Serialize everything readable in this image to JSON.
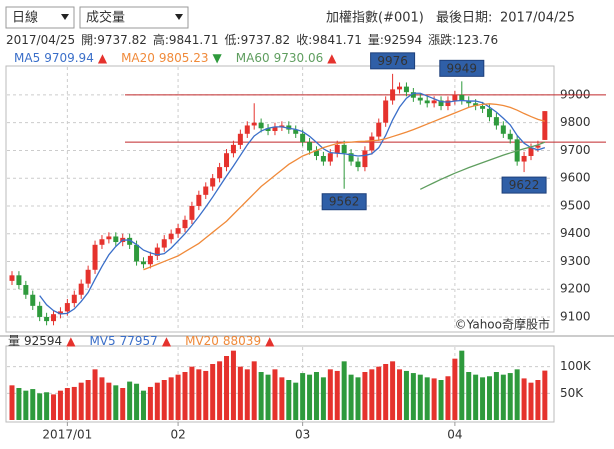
{
  "header": {
    "period": "日線",
    "indicator": "成交量",
    "title": "加權指數(#001)",
    "last_date_label": "最後日期:",
    "last_date": "2017/04/25"
  },
  "quote": {
    "date": "2017/04/25",
    "items": [
      {
        "label": "開:",
        "value": 9737.82
      },
      {
        "label": "高:",
        "value": 9841.71
      },
      {
        "label": "低:",
        "value": 9737.82
      },
      {
        "label": "收:",
        "value": 9841.71
      },
      {
        "label": "量:",
        "value": 92594
      },
      {
        "label": "漲跌:",
        "value": 123.76
      }
    ]
  },
  "chart_data": [
    {
      "type": "candlestick",
      "up_color": "#e5322d",
      "down_color": "#2e9a3c",
      "ylim": [
        9053,
        9943
      ],
      "yticks": [
        9100,
        9200,
        9300,
        9400,
        9500,
        9600,
        9700,
        9800,
        9900
      ],
      "grid": true,
      "watermark": "©Yahoo奇摩股市",
      "hlines": [
        9900,
        9730
      ],
      "hline_color": "#c0282a",
      "annotations": [
        9976,
        9949,
        9562,
        9622
      ],
      "open": [
        9230,
        9250,
        9215,
        9180,
        9140,
        9100,
        9085,
        9110,
        9120,
        9150,
        9180,
        9220,
        9270,
        9360,
        9380,
        9390,
        9370,
        9385,
        9360,
        9300,
        9290,
        9320,
        9350,
        9380,
        9400,
        9420,
        9450,
        9500,
        9540,
        9570,
        9600,
        9640,
        9690,
        9720,
        9760,
        9790,
        9800,
        9780,
        9770,
        9785,
        9790,
        9775,
        9760,
        9730,
        9700,
        9680,
        9660,
        9690,
        9720,
        9690,
        9660,
        9640,
        9700,
        9750,
        9800,
        9880,
        9920,
        9930,
        9910,
        9890,
        9880,
        9870,
        9880,
        9860,
        9880,
        9900,
        9880,
        9870,
        9860,
        9850,
        9820,
        9790,
        9760,
        9740,
        9660,
        9680,
        9710,
        9737.82
      ],
      "high": [
        9265,
        9265,
        9230,
        9195,
        9155,
        9115,
        9125,
        9135,
        9165,
        9195,
        9235,
        9285,
        9375,
        9395,
        9405,
        9405,
        9400,
        9400,
        9375,
        9315,
        9335,
        9365,
        9395,
        9415,
        9435,
        9465,
        9515,
        9555,
        9585,
        9615,
        9655,
        9705,
        9735,
        9775,
        9805,
        9870,
        9815,
        9795,
        9800,
        9805,
        9805,
        9790,
        9775,
        9745,
        9715,
        9695,
        9705,
        9735,
        9735,
        9705,
        9675,
        9715,
        9765,
        9815,
        9895,
        9976,
        9945,
        9945,
        9925,
        9905,
        9895,
        9895,
        9895,
        9895,
        9915,
        9949,
        9895,
        9885,
        9875,
        9865,
        9835,
        9805,
        9775,
        9755,
        9695,
        9725,
        9735,
        9841.71
      ],
      "low": [
        9215,
        9200,
        9165,
        9125,
        9085,
        9070,
        9070,
        9095,
        9105,
        9135,
        9165,
        9205,
        9255,
        9345,
        9365,
        9355,
        9355,
        9345,
        9285,
        9275,
        9275,
        9305,
        9335,
        9365,
        9385,
        9405,
        9435,
        9485,
        9525,
        9555,
        9585,
        9625,
        9675,
        9705,
        9745,
        9775,
        9765,
        9755,
        9755,
        9770,
        9760,
        9745,
        9715,
        9685,
        9665,
        9645,
        9645,
        9675,
        9562,
        9645,
        9625,
        9625,
        9685,
        9735,
        9785,
        9865,
        9905,
        9895,
        9875,
        9865,
        9855,
        9855,
        9845,
        9845,
        9865,
        9865,
        9855,
        9845,
        9835,
        9805,
        9775,
        9745,
        9725,
        9645,
        9622,
        9665,
        9695,
        9737.82
      ],
      "close": [
        9250,
        9215,
        9180,
        9140,
        9100,
        9085,
        9110,
        9120,
        9150,
        9180,
        9220,
        9270,
        9360,
        9380,
        9390,
        9370,
        9385,
        9360,
        9300,
        9290,
        9320,
        9350,
        9380,
        9400,
        9420,
        9450,
        9500,
        9540,
        9570,
        9600,
        9640,
        9690,
        9720,
        9760,
        9790,
        9800,
        9780,
        9770,
        9785,
        9790,
        9775,
        9760,
        9730,
        9700,
        9680,
        9660,
        9690,
        9720,
        9690,
        9660,
        9640,
        9700,
        9750,
        9800,
        9880,
        9920,
        9930,
        9910,
        9890,
        9880,
        9870,
        9880,
        9860,
        9880,
        9900,
        9880,
        9870,
        9860,
        9850,
        9820,
        9790,
        9760,
        9740,
        9660,
        9680,
        9710,
        9717.95,
        9841.71
      ],
      "ma": [
        {
          "name": "MA5",
          "value": 9709.94,
          "trend": "▲",
          "trend_color": "#e5322d",
          "color": "#3b6fc9",
          "values": [
            null,
            null,
            null,
            null,
            9177,
            9144,
            9123,
            9111,
            9113,
            9129,
            9156,
            9188,
            9236,
            9282,
            9324,
            9354,
            9377,
            9377,
            9361,
            9341,
            9331,
            9324,
            9328,
            9348,
            9374,
            9400,
            9430,
            9462,
            9496,
            9532,
            9570,
            9608,
            9644,
            9682,
            9720,
            9752,
            9770,
            9780,
            9785,
            9785,
            9780,
            9776,
            9768,
            9751,
            9729,
            9706,
            9692,
            9690,
            9688,
            9684,
            9680,
            9682,
            9688,
            9710,
            9754,
            9810,
            9856,
            9888,
            9906,
            9906,
            9896,
            9886,
            9876,
            9874,
            9878,
            9880,
            9878,
            9878,
            9872,
            9856,
            9838,
            9816,
            9792,
            9754,
            9726,
            9710,
            9702,
            9709.94
          ]
        },
        {
          "name": "MA20",
          "value": 9805.23,
          "trend": "▼",
          "trend_color": "#2e9a3c",
          "color": "#f08a3a",
          "values": [
            null,
            null,
            null,
            null,
            null,
            null,
            null,
            null,
            null,
            null,
            null,
            null,
            null,
            null,
            null,
            null,
            null,
            null,
            null,
            9270,
            9280,
            9290,
            9300,
            9310,
            9320,
            9335,
            9350,
            9365,
            9385,
            9405,
            9425,
            9445,
            9470,
            9495,
            9520,
            9545,
            9570,
            9590,
            9610,
            9630,
            9650,
            9665,
            9680,
            9690,
            9700,
            9710,
            9718,
            9725,
            9728,
            9730,
            9732,
            9733,
            9735,
            9737,
            9742,
            9750,
            9758,
            9766,
            9775,
            9785,
            9795,
            9805,
            9815,
            9825,
            9835,
            9845,
            9855,
            9862,
            9866,
            9868,
            9866,
            9862,
            9855,
            9845,
            9833,
            9822,
            9812,
            9805.23
          ]
        },
        {
          "name": "MA60",
          "value": 9730.06,
          "trend": "▲",
          "trend_color": "#e5322d",
          "color": "#5f9e5f",
          "values": [
            null,
            null,
            null,
            null,
            null,
            null,
            null,
            null,
            null,
            null,
            null,
            null,
            null,
            null,
            null,
            null,
            null,
            null,
            null,
            null,
            null,
            null,
            null,
            null,
            null,
            null,
            null,
            null,
            null,
            null,
            null,
            null,
            null,
            null,
            null,
            null,
            null,
            null,
            null,
            null,
            null,
            null,
            null,
            null,
            null,
            null,
            null,
            null,
            null,
            null,
            null,
            null,
            null,
            null,
            null,
            null,
            null,
            null,
            null,
            9560,
            9572,
            9584,
            9596,
            9607,
            9618,
            9628,
            9638,
            9647,
            9656,
            9665,
            9674,
            9683,
            9691,
            9699,
            9706,
            9713,
            9720,
            9730.06
          ]
        }
      ]
    },
    {
      "type": "bar",
      "categories": [
        null,
        null,
        null,
        null,
        null,
        null,
        null,
        null,
        "2017/01",
        null,
        null,
        null,
        null,
        null,
        null,
        null,
        null,
        null,
        null,
        null,
        null,
        null,
        null,
        null,
        "02",
        null,
        null,
        null,
        null,
        null,
        null,
        null,
        null,
        null,
        null,
        null,
        null,
        null,
        null,
        null,
        null,
        null,
        "03",
        null,
        null,
        null,
        null,
        null,
        null,
        null,
        null,
        null,
        null,
        null,
        null,
        null,
        null,
        null,
        null,
        null,
        null,
        null,
        null,
        null,
        "04",
        null,
        null,
        null,
        null,
        null,
        null,
        null,
        null,
        null,
        null,
        null,
        null,
        null
      ],
      "values": [
        65000,
        60000,
        55000,
        58000,
        50000,
        52000,
        48000,
        55000,
        60000,
        62000,
        70000,
        75000,
        95000,
        80000,
        70000,
        65000,
        60000,
        72000,
        68000,
        55000,
        62000,
        70000,
        75000,
        80000,
        85000,
        90000,
        100000,
        95000,
        92000,
        105000,
        110000,
        120000,
        130000,
        100000,
        95000,
        110000,
        90000,
        85000,
        95000,
        80000,
        75000,
        70000,
        88000,
        85000,
        90000,
        80000,
        95000,
        92000,
        110000,
        85000,
        80000,
        90000,
        95000,
        100000,
        105000,
        110000,
        95000,
        92000,
        88000,
        85000,
        80000,
        78000,
        75000,
        82000,
        115000,
        130000,
        90000,
        85000,
        80000,
        82000,
        90000,
        85000,
        88000,
        95000,
        78000,
        70000,
        75000,
        92594
      ],
      "ylim": [
        0,
        135000
      ],
      "yticks": [
        {
          "value": 50000,
          "label": "50K"
        },
        {
          "value": 100000,
          "label": "100K"
        }
      ],
      "grid": true,
      "legend": [
        {
          "name": "量",
          "value": 92594,
          "trend": "▲",
          "trend_color": "#e5322d",
          "color": "#333333"
        },
        {
          "name": "MV5",
          "value": 77957,
          "trend": "▲",
          "trend_color": "#e5322d",
          "color": "#3b6fc9"
        },
        {
          "name": "MV20",
          "value": 88039,
          "trend": "▲",
          "trend_color": "#e5322d",
          "color": "#f08a3a"
        }
      ]
    }
  ]
}
